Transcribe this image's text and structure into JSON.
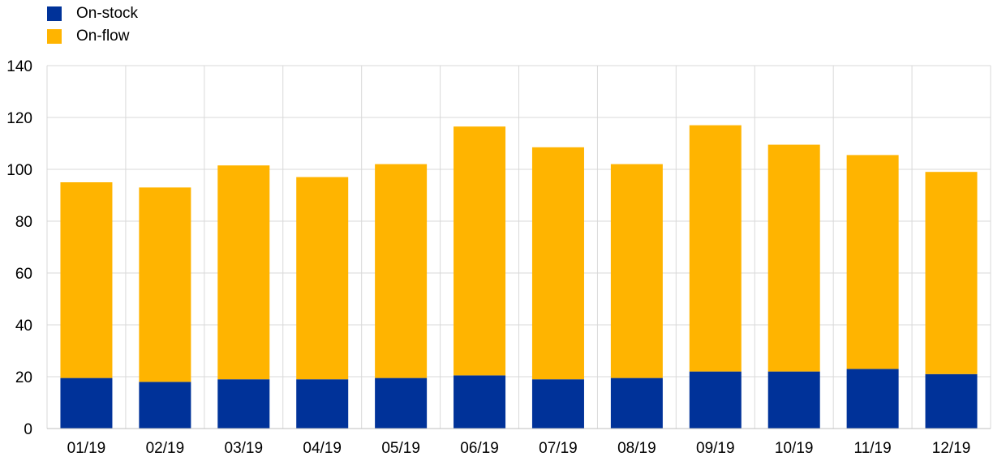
{
  "chart_data": {
    "type": "bar",
    "stacked": true,
    "categories": [
      "01/19",
      "02/19",
      "03/19",
      "04/19",
      "05/19",
      "06/19",
      "07/19",
      "08/19",
      "09/19",
      "10/19",
      "11/19",
      "12/19"
    ],
    "series": [
      {
        "name": "On-stock",
        "color": "#003299",
        "values": [
          19.5,
          18,
          19,
          19,
          19.5,
          20.5,
          19,
          19.5,
          22,
          22,
          23,
          21
        ]
      },
      {
        "name": "On-flow",
        "color": "#FFB400",
        "values": [
          75.5,
          75,
          82.5,
          78,
          82.5,
          96,
          89.5,
          82.5,
          95,
          87.5,
          82.5,
          78
        ]
      }
    ],
    "ylim": [
      0,
      140
    ],
    "yticks": [
      "0",
      "20",
      "40",
      "60",
      "80",
      "100",
      "120",
      "140"
    ],
    "grid": true,
    "legend_position": "top-left"
  }
}
